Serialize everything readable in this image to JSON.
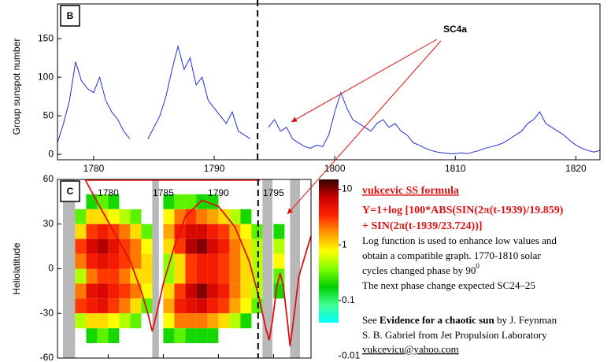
{
  "chart_data": [
    {
      "type": "line",
      "panel_label": "B",
      "y_label": "Group sunspot number",
      "annotation": "SC4a",
      "xlim": [
        1777,
        1822
      ],
      "ylim": [
        -7,
        195
      ],
      "xticks": [
        1780,
        1790,
        1800,
        1810,
        1820
      ],
      "yticks": [
        0,
        50,
        100,
        150
      ],
      "vline_x": 1793.6,
      "series": [
        {
          "color": "#1f2fd8",
          "x": [
            1777,
            1777.5,
            1778,
            1778.5,
            1779,
            1779.5,
            1780,
            1780.5,
            1781,
            1781.5,
            1782,
            1782.5,
            1783,
            1783.5,
            1784,
            1784.5,
            1785,
            1785.5,
            1786,
            1786.5,
            1787,
            1787.5,
            1788,
            1788.5,
            1789,
            1789.5,
            1790,
            1790.5,
            1791,
            1791.5,
            1792,
            1792.5,
            1793,
            1793.5,
            1794,
            1794.5,
            1795,
            1795.5,
            1796,
            1796.5,
            1797,
            1797.5,
            1798,
            1798.5,
            1799,
            1799.5,
            1800,
            1800.5,
            1801,
            1801.5,
            1802,
            1802.5,
            1803,
            1803.5,
            1804,
            1804.5,
            1805,
            1805.5,
            1806,
            1806.5,
            1807,
            1807.5,
            1808,
            1808.5,
            1809,
            1809.5,
            1810,
            1810.5,
            1811,
            1811.5,
            1812,
            1812.5,
            1813,
            1813.5,
            1814,
            1814.5,
            1815,
            1815.5,
            1816,
            1816.5,
            1817,
            1817.5,
            1818,
            1818.5,
            1819,
            1819.5,
            1820,
            1820.5,
            1821,
            1821.5,
            1822
          ],
          "values": [
            15,
            40,
            70,
            120,
            95,
            85,
            80,
            100,
            70,
            55,
            45,
            30,
            20,
            null,
            null,
            20,
            35,
            50,
            75,
            110,
            140,
            110,
            125,
            90,
            100,
            70,
            60,
            50,
            40,
            55,
            30,
            25,
            20,
            null,
            null,
            35,
            45,
            30,
            35,
            20,
            15,
            10,
            8,
            12,
            10,
            25,
            55,
            80,
            60,
            45,
            40,
            35,
            30,
            40,
            45,
            35,
            40,
            30,
            25,
            15,
            12,
            8,
            5,
            3,
            2,
            1,
            1,
            2,
            1,
            3,
            5,
            8,
            10,
            12,
            15,
            20,
            25,
            30,
            40,
            45,
            55,
            40,
            35,
            30,
            25,
            18,
            12,
            8,
            5,
            3,
            5
          ]
        }
      ]
    },
    {
      "type": "heatmap",
      "panel_label": "C",
      "y_label": "Heliolatitude",
      "xlim": [
        1775.4,
        1798.4
      ],
      "ylim": [
        -60,
        60
      ],
      "xticks": [
        1780,
        1785,
        1790,
        1795
      ],
      "yticks": [
        -60,
        -30,
        0,
        30,
        60
      ],
      "vline_x": 1793.6,
      "log_scale": true,
      "clim": [
        0.04,
        15
      ],
      "cticks": [
        10,
        1,
        0.1,
        0.01
      ],
      "colors": [
        "#00ffff",
        "#40ff90",
        "#00d000",
        "#80ff00",
        "#ffff00",
        "#ff9900",
        "#ff2200",
        "#cc0000",
        "#300000"
      ],
      "gap_color": "#b8b8b8",
      "gaps": [
        [
          1775.9,
          1777
        ],
        [
          1784,
          1784.6
        ],
        [
          1794,
          1794.9
        ],
        [
          1796.5,
          1797.4
        ]
      ],
      "x": [
        1776,
        1777,
        1778,
        1779,
        1780,
        1781,
        1782,
        1783,
        1784,
        1785,
        1786,
        1787,
        1788,
        1789,
        1790,
        1791,
        1792,
        1793,
        1794,
        1795,
        1796,
        1797
      ],
      "ybins": [
        50,
        40,
        30,
        20,
        10,
        0,
        -10,
        -20,
        -30,
        -40,
        -50
      ],
      "values": [
        [
          null,
          null,
          null,
          null,
          null,
          null,
          null,
          null,
          null,
          null
        ],
        [
          null,
          0.3,
          1,
          3,
          2,
          0.5,
          2,
          3,
          0.5,
          null
        ],
        [
          0.2,
          1,
          3,
          6,
          4,
          2,
          5,
          4,
          1,
          0.2
        ],
        [
          0.3,
          1,
          4,
          8,
          5,
          3,
          6,
          5,
          1,
          0.3
        ],
        [
          0.2,
          0.8,
          3,
          5,
          4,
          3,
          4,
          3,
          0.8,
          0.2
        ],
        [
          null,
          0.5,
          2,
          3,
          3,
          2,
          3,
          2,
          0.5,
          null
        ],
        [
          null,
          0.3,
          1,
          2,
          2,
          1,
          2,
          1,
          0.3,
          null
        ],
        [
          null,
          null,
          0.3,
          0.8,
          1,
          1,
          0.8,
          0.3,
          null,
          null
        ],
        [
          null,
          null,
          null,
          null,
          null,
          null,
          null,
          null,
          null,
          null
        ],
        [
          0.2,
          0.8,
          1.5,
          1,
          0.4,
          0.4,
          1,
          1.5,
          0.8,
          0.2
        ],
        [
          0.3,
          2,
          4,
          3,
          1,
          1,
          3,
          4,
          2,
          0.3
        ],
        [
          0.3,
          3,
          6,
          8,
          3,
          3,
          7,
          5,
          2,
          0.2
        ],
        [
          0.2,
          2,
          6,
          10,
          4,
          4,
          10,
          6,
          2,
          0.2
        ],
        [
          0.2,
          1.5,
          4,
          6,
          4,
          4,
          6,
          4,
          1.5,
          0.2
        ],
        [
          null,
          1,
          3,
          4,
          3,
          3,
          4,
          3,
          1,
          null
        ],
        [
          null,
          0.5,
          1.5,
          2,
          2,
          2,
          2,
          1.5,
          0.5,
          null
        ],
        [
          null,
          0.2,
          0.8,
          1,
          1,
          1,
          1,
          0.8,
          0.2,
          null
        ],
        [
          null,
          null,
          0.3,
          0.5,
          0.5,
          0.5,
          0.5,
          0.3,
          null,
          null
        ],
        [
          null,
          null,
          null,
          null,
          null,
          null,
          null,
          null,
          null,
          null
        ],
        [
          null,
          null,
          0.2,
          0.5,
          0.8,
          0.3,
          0.2,
          null,
          null,
          null
        ],
        [
          null,
          null,
          null,
          null,
          null,
          null,
          null,
          null,
          null,
          null
        ],
        [
          null,
          null,
          null,
          null,
          null,
          null,
          null,
          null,
          null,
          null
        ]
      ],
      "curve": {
        "color": "#e01010",
        "x": [
          1777.9,
          1779,
          1780.5,
          1782,
          1783,
          1783.6,
          1784,
          1784.4,
          1785,
          1786,
          1787,
          1788.5,
          1790,
          1791.5,
          1792.8,
          1793.7,
          1794.3,
          1794.6,
          1794.9,
          1795.3,
          1795.6,
          1795.9,
          1796.3,
          1796.5,
          1796.8,
          1797.3,
          1798.4
        ],
        "values": [
          60,
          45,
          25,
          5,
          -15,
          -30,
          -42,
          -30,
          -10,
          15,
          35,
          46,
          42,
          28,
          5,
          -20,
          -40,
          -48,
          -35,
          -12,
          -3,
          -12,
          -38,
          -52,
          -35,
          -5,
          22
        ]
      }
    }
  ],
  "notes": {
    "formula_title": "vukcevic SS formula",
    "formula_line1": "Y=1+log [100*ABS(SIN(2π(t-1939)/19.859)",
    "formula_line2": "+ SIN(2π(t-1939/23.724))]",
    "para_line1": "Log function is used to enhance low values and",
    "para_line2": "obtain a compatible graph. 1770-1810 solar",
    "para_line3": "cycles changed phase by 90",
    "para_line3_sup": "0",
    "para_line4": "The next phase change expected SC24–25",
    "ref_pre": "See ",
    "ref_bold": "Evidence for a chaotic sun",
    "ref_post": " by J. Feynman",
    "ref_line2": "S. B. Gabriel from Jet Propulsion Laboratory",
    "email": "vukcevicu@yahoo.com"
  }
}
